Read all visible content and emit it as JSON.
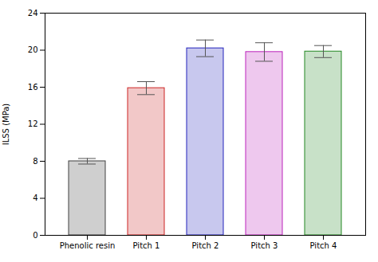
{
  "chart_data": {
    "type": "bar",
    "categories": [
      "Phenolic resin",
      "Pitch 1",
      "Pitch 2",
      "Pitch 3",
      "Pitch 4"
    ],
    "values": [
      8.0,
      15.9,
      20.2,
      19.8,
      19.85
    ],
    "errors": [
      0.3,
      0.7,
      0.9,
      1.0,
      0.65
    ],
    "colors": [
      "#404040",
      "#cc2222",
      "#2222bb",
      "#bb22bb",
      "#228822"
    ],
    "ylabel": "ILSS (MPa)",
    "ylim": [
      0,
      24
    ],
    "yticks": [
      0,
      4,
      8,
      12,
      16,
      20,
      24
    ],
    "grid": false
  }
}
